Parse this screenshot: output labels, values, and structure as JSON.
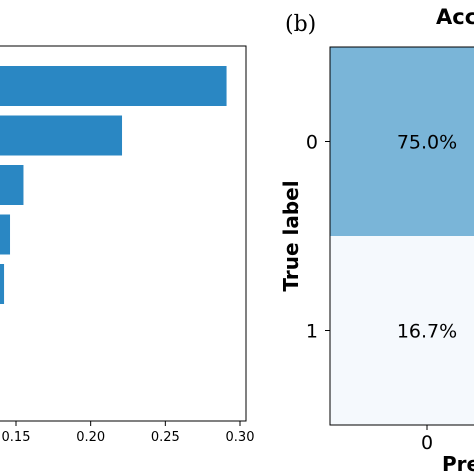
{
  "chart_data": [
    {
      "type": "bar",
      "orientation": "horizontal",
      "values": [
        0.291,
        0.221,
        0.155,
        0.146,
        0.142
      ],
      "xticks": [
        "0.15",
        "0.20",
        "0.25",
        "0.30"
      ],
      "xlim": [
        0.1,
        0.3
      ],
      "bar_color": "#2a87c3",
      "grid": false
    },
    {
      "type": "heatmap",
      "panel_label": "(b)",
      "title": "Acc",
      "xlabel": "Pre",
      "ylabel": "True label",
      "row_labels": [
        "0",
        "1"
      ],
      "col_labels": [
        "0"
      ],
      "cells": [
        {
          "row": 0,
          "col": 0,
          "value": 75.0,
          "text": "75.0%",
          "color": "#7ab5d8"
        },
        {
          "row": 1,
          "col": 0,
          "value": 16.7,
          "text": "16.7%",
          "color": "#f5f9fd"
        }
      ]
    }
  ]
}
